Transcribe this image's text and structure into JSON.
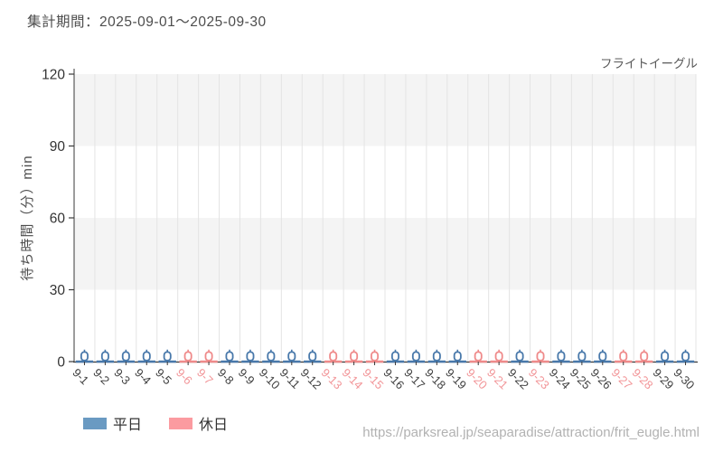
{
  "header": {
    "period_label": "集計期間：2025-09-01～2025-09-30"
  },
  "chart_data": {
    "type": "boxplot",
    "title": "フライトイーグル",
    "ylabel": "待ち時間（分）min",
    "ylim": [
      0,
      120
    ],
    "yticks": [
      0,
      30,
      60,
      90,
      120
    ],
    "grid": "vertical gridlines at category boundaries; alternating horizontal gray bands (30-60, 90-120)",
    "legend_position": "bottom-left",
    "units": "minutes",
    "series_colors": {
      "weekday": "#4878aa",
      "holiday": "#ef8a8a"
    },
    "label_colors": {
      "weekday": "#3f3f3f",
      "holiday": "#f29598"
    },
    "days": [
      {
        "date": "9-1",
        "day_type": "weekday",
        "low": 0,
        "box_bottom": 0,
        "median": 0,
        "box_top": 4,
        "high": 5
      },
      {
        "date": "9-2",
        "day_type": "weekday",
        "low": 0,
        "box_bottom": 0,
        "median": 0,
        "box_top": 4,
        "high": 5
      },
      {
        "date": "9-3",
        "day_type": "weekday",
        "low": 0,
        "box_bottom": 0,
        "median": 0,
        "box_top": 4,
        "high": 5
      },
      {
        "date": "9-4",
        "day_type": "weekday",
        "low": 0,
        "box_bottom": 0,
        "median": 0,
        "box_top": 4,
        "high": 5
      },
      {
        "date": "9-5",
        "day_type": "weekday",
        "low": 0,
        "box_bottom": 0,
        "median": 0,
        "box_top": 4,
        "high": 5
      },
      {
        "date": "9-6",
        "day_type": "holiday",
        "low": 0,
        "box_bottom": 0,
        "median": 0,
        "box_top": 4,
        "high": 5
      },
      {
        "date": "9-7",
        "day_type": "holiday",
        "low": 0,
        "box_bottom": 0,
        "median": 0,
        "box_top": 4,
        "high": 5
      },
      {
        "date": "9-8",
        "day_type": "weekday",
        "low": 0,
        "box_bottom": 0,
        "median": 0,
        "box_top": 4,
        "high": 5
      },
      {
        "date": "9-9",
        "day_type": "weekday",
        "low": 0,
        "box_bottom": 0,
        "median": 0,
        "box_top": 4,
        "high": 5
      },
      {
        "date": "9-10",
        "day_type": "weekday",
        "low": 0,
        "box_bottom": 0,
        "median": 0,
        "box_top": 4,
        "high": 5
      },
      {
        "date": "9-11",
        "day_type": "weekday",
        "low": 0,
        "box_bottom": 0,
        "median": 0,
        "box_top": 4,
        "high": 5
      },
      {
        "date": "9-12",
        "day_type": "weekday",
        "low": 0,
        "box_bottom": 0,
        "median": 0,
        "box_top": 4,
        "high": 5
      },
      {
        "date": "9-13",
        "day_type": "holiday",
        "low": 0,
        "box_bottom": 0,
        "median": 0,
        "box_top": 4,
        "high": 5
      },
      {
        "date": "9-14",
        "day_type": "holiday",
        "low": 0,
        "box_bottom": 0,
        "median": 0,
        "box_top": 4,
        "high": 5
      },
      {
        "date": "9-15",
        "day_type": "holiday",
        "low": 0,
        "box_bottom": 0,
        "median": 0,
        "box_top": 4,
        "high": 5
      },
      {
        "date": "9-16",
        "day_type": "weekday",
        "low": 0,
        "box_bottom": 0,
        "median": 0,
        "box_top": 4,
        "high": 5
      },
      {
        "date": "9-17",
        "day_type": "weekday",
        "low": 0,
        "box_bottom": 0,
        "median": 0,
        "box_top": 4,
        "high": 5
      },
      {
        "date": "9-18",
        "day_type": "weekday",
        "low": 0,
        "box_bottom": 0,
        "median": 0,
        "box_top": 4,
        "high": 5
      },
      {
        "date": "9-19",
        "day_type": "weekday",
        "low": 0,
        "box_bottom": 0,
        "median": 0,
        "box_top": 4,
        "high": 5
      },
      {
        "date": "9-20",
        "day_type": "holiday",
        "low": 0,
        "box_bottom": 0,
        "median": 0,
        "box_top": 4,
        "high": 5
      },
      {
        "date": "9-21",
        "day_type": "holiday",
        "low": 0,
        "box_bottom": 0,
        "median": 0,
        "box_top": 4,
        "high": 5
      },
      {
        "date": "9-22",
        "day_type": "weekday",
        "low": 0,
        "box_bottom": 0,
        "median": 0,
        "box_top": 4,
        "high": 5
      },
      {
        "date": "9-23",
        "day_type": "holiday",
        "low": 0,
        "box_bottom": 0,
        "median": 0,
        "box_top": 4,
        "high": 5
      },
      {
        "date": "9-24",
        "day_type": "weekday",
        "low": 0,
        "box_bottom": 0,
        "median": 0,
        "box_top": 4,
        "high": 5
      },
      {
        "date": "9-25",
        "day_type": "weekday",
        "low": 0,
        "box_bottom": 0,
        "median": 0,
        "box_top": 4,
        "high": 5
      },
      {
        "date": "9-26",
        "day_type": "weekday",
        "low": 0,
        "box_bottom": 0,
        "median": 0,
        "box_top": 4,
        "high": 5
      },
      {
        "date": "9-27",
        "day_type": "holiday",
        "low": 0,
        "box_bottom": 0,
        "median": 0,
        "box_top": 4,
        "high": 5
      },
      {
        "date": "9-28",
        "day_type": "holiday",
        "low": 0,
        "box_bottom": 0,
        "median": 0,
        "box_top": 4,
        "high": 5
      },
      {
        "date": "9-29",
        "day_type": "weekday",
        "low": 0,
        "box_bottom": 0,
        "median": 0,
        "box_top": 4,
        "high": 5
      },
      {
        "date": "9-30",
        "day_type": "weekday",
        "low": 0,
        "box_bottom": 0,
        "median": 0,
        "box_top": 4,
        "high": 5
      }
    ]
  },
  "legend": {
    "items": [
      {
        "label": "平日",
        "color": "#6a9ac2",
        "type": "weekday"
      },
      {
        "label": "休日",
        "color": "#fb9ba0",
        "type": "holiday"
      }
    ]
  },
  "footer": {
    "url": "https://parksreal.jp/seaparadise/attraction/frit_eugle.html"
  }
}
